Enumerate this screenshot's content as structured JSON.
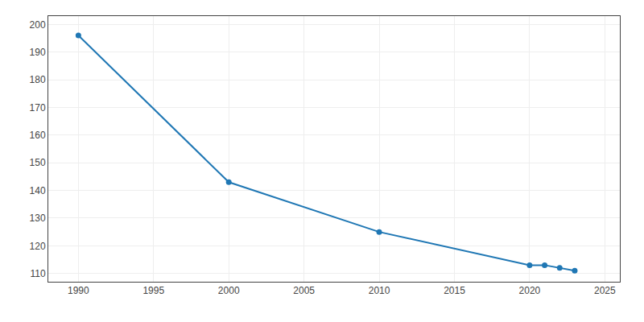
{
  "chart_data": {
    "type": "line",
    "x": [
      1990,
      2000,
      2010,
      2020,
      2021,
      2022,
      2023
    ],
    "values": [
      196,
      143,
      125,
      113,
      113,
      112,
      111
    ],
    "xlim": [
      1988,
      2026
    ],
    "ylim": [
      107,
      203
    ],
    "xticks": [
      1990,
      1995,
      2000,
      2005,
      2010,
      2015,
      2020,
      2025
    ],
    "yticks": [
      110,
      120,
      130,
      140,
      150,
      160,
      170,
      180,
      190,
      200
    ],
    "grid": true,
    "marker": "circle"
  }
}
